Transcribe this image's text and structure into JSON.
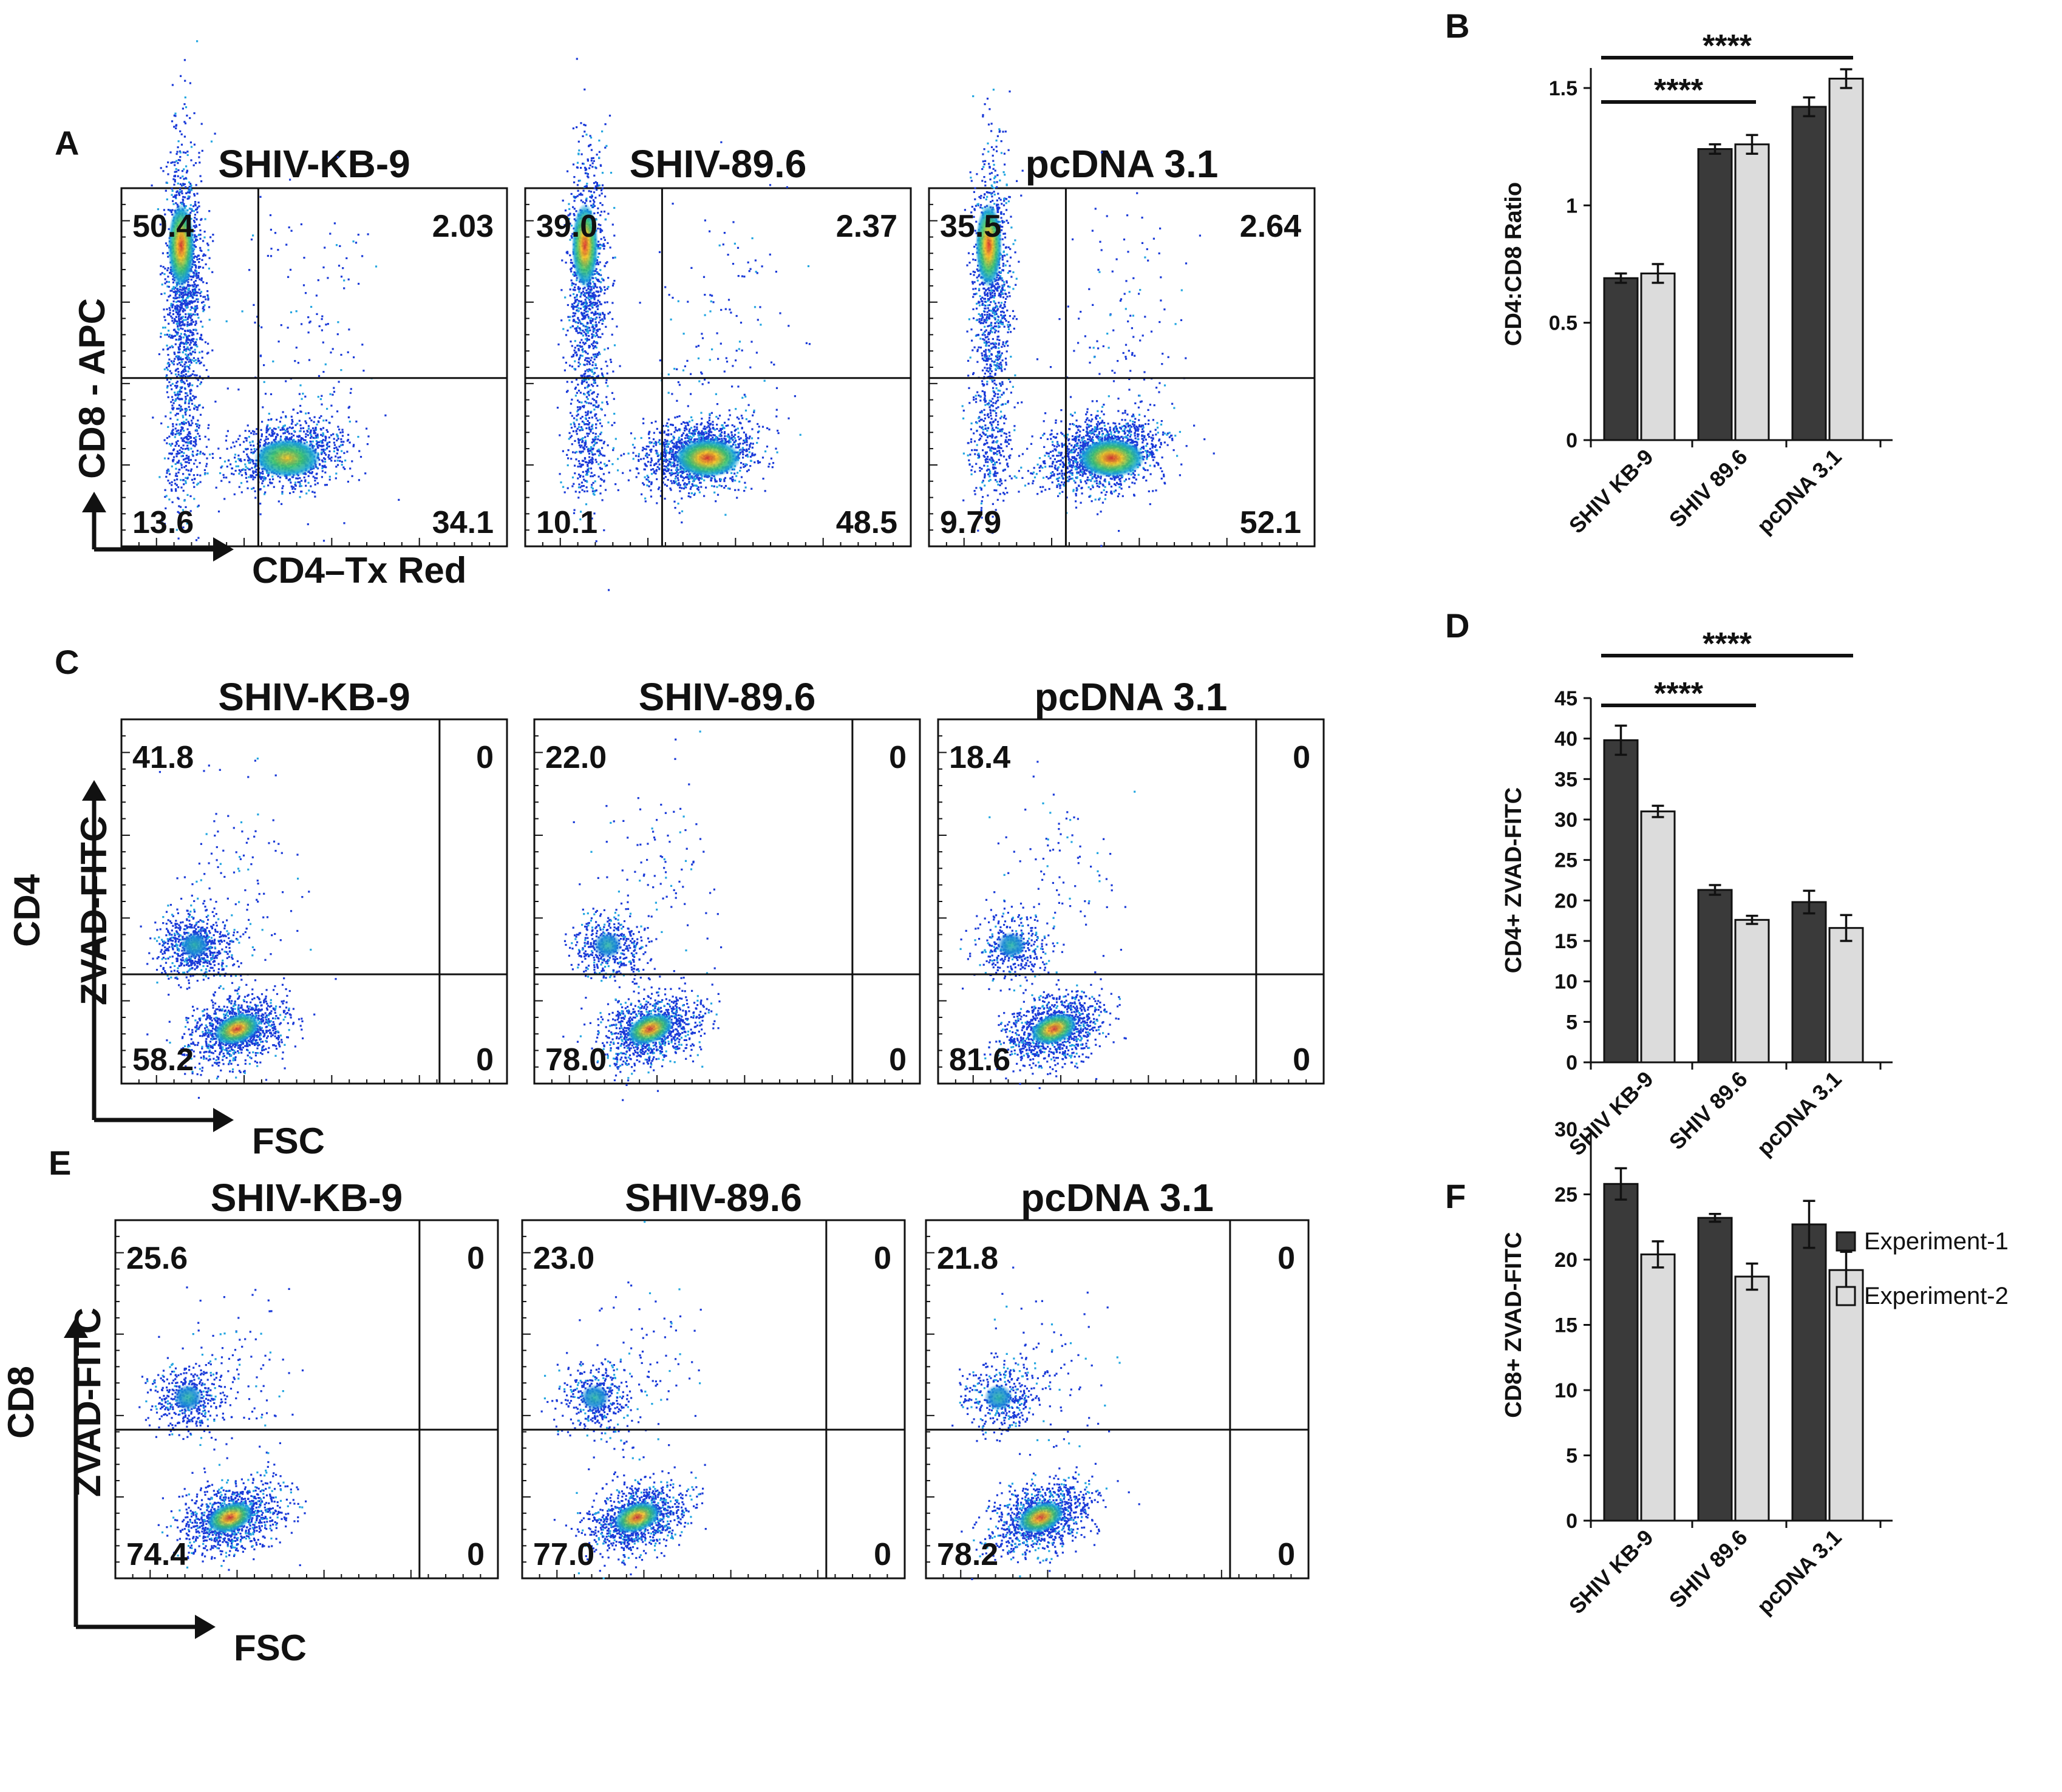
{
  "figure": {
    "flow_rows": [
      {
        "panel": "A",
        "x_axis": "CD4–Tx Red",
        "y_axis": [
          "CD8 - APC"
        ],
        "plots": [
          {
            "title": "SHIV-KB-9",
            "q_ul": "50.4",
            "q_ur": "2.03",
            "q_ll": "13.6",
            "q_lr": "34.1"
          },
          {
            "title": "SHIV-89.6",
            "q_ul": "39.0",
            "q_ur": "2.37",
            "q_ll": "10.1",
            "q_lr": "48.5"
          },
          {
            "title": "pcDNA 3.1",
            "q_ul": "35.5",
            "q_ur": "2.64",
            "q_ll": "9.79",
            "q_lr": "52.1"
          }
        ]
      },
      {
        "panel": "C",
        "x_axis": "FSC",
        "y_axis": [
          "CD4",
          "ZVAD-FITC"
        ],
        "plots": [
          {
            "title": "SHIV-KB-9",
            "q_ul": "41.8",
            "q_ur": "0",
            "q_ll": "58.2",
            "q_lr": "0"
          },
          {
            "title": "SHIV-89.6",
            "q_ul": "22.0",
            "q_ur": "0",
            "q_ll": "78.0",
            "q_lr": "0"
          },
          {
            "title": "pcDNA 3.1",
            "q_ul": "18.4",
            "q_ur": "0",
            "q_ll": "81.6",
            "q_lr": "0"
          }
        ]
      },
      {
        "panel": "E",
        "x_axis": "FSC",
        "y_axis": [
          "CD8",
          "ZVAD-FITC"
        ],
        "plots": [
          {
            "title": "SHIV-KB-9",
            "q_ul": "25.6",
            "q_ur": "0",
            "q_ll": "74.4",
            "q_lr": "0"
          },
          {
            "title": "SHIV-89.6",
            "q_ul": "23.0",
            "q_ur": "0",
            "q_ll": "77.0",
            "q_lr": "0"
          },
          {
            "title": "pcDNA 3.1",
            "q_ul": "21.8",
            "q_ur": "0",
            "q_ll": "78.2",
            "q_lr": "0"
          }
        ]
      }
    ],
    "legend": [
      {
        "label": "Experiment-1",
        "color": "#3a3a3a"
      },
      {
        "label": "Experiment-2",
        "color": "#dcdcdc"
      }
    ]
  },
  "chart_data": [
    {
      "panel": "B",
      "type": "bar",
      "categories": [
        "SHIV KB-9",
        "SHIV 89.6",
        "pcDNA 3.1"
      ],
      "series": [
        {
          "name": "Experiment-1",
          "values": [
            0.69,
            1.24,
            1.42
          ],
          "errors": [
            0.02,
            0.02,
            0.04
          ]
        },
        {
          "name": "Experiment-2",
          "values": [
            0.71,
            1.26,
            1.54
          ],
          "errors": [
            0.04,
            0.04,
            0.04
          ]
        }
      ],
      "ylabel": "CD4:CD8 Ratio",
      "ylim": [
        0,
        1.5
      ],
      "yticks": [
        0,
        0.5,
        1,
        1.5
      ],
      "ytick_labels": [
        "0",
        "0.5",
        "1",
        "1.5"
      ],
      "significance": [
        {
          "from": 0,
          "to": 1,
          "label": "****"
        },
        {
          "from": 0,
          "to": 2,
          "label": "****"
        }
      ]
    },
    {
      "panel": "D",
      "type": "bar",
      "categories": [
        "SHIV KB-9",
        "SHIV 89.6",
        "pcDNA 3.1"
      ],
      "series": [
        {
          "name": "Experiment-1",
          "values": [
            39.8,
            21.3,
            19.8
          ],
          "errors": [
            1.8,
            0.6,
            1.4
          ]
        },
        {
          "name": "Experiment-2",
          "values": [
            31.0,
            17.6,
            16.6
          ],
          "errors": [
            0.7,
            0.5,
            1.6
          ]
        }
      ],
      "ylabel": "CD4+ ZVAD-FITC",
      "ylim": [
        0,
        45
      ],
      "yticks": [
        0,
        5,
        10,
        15,
        20,
        25,
        30,
        35,
        40,
        45
      ],
      "ytick_labels": [
        "0",
        "5",
        "10",
        "15",
        "20",
        "25",
        "30",
        "35",
        "40",
        "45"
      ],
      "significance": [
        {
          "from": 0,
          "to": 1,
          "label": "****"
        },
        {
          "from": 0,
          "to": 2,
          "label": "****"
        }
      ]
    },
    {
      "panel": "F",
      "type": "bar",
      "categories": [
        "SHIV KB-9",
        "SHIV 89.6",
        "pcDNA 3.1"
      ],
      "series": [
        {
          "name": "Experiment-1",
          "values": [
            25.8,
            23.2,
            22.7
          ],
          "errors": [
            1.2,
            0.3,
            1.8
          ]
        },
        {
          "name": "Experiment-2",
          "values": [
            20.4,
            18.7,
            19.2
          ],
          "errors": [
            1.0,
            1.0,
            1.4
          ]
        }
      ],
      "ylabel": "CD8+ ZVAD-FITC",
      "ylim": [
        0,
        30
      ],
      "yticks": [
        0,
        5,
        10,
        15,
        20,
        25,
        30
      ],
      "ytick_labels": [
        "0",
        "5",
        "10",
        "15",
        "20",
        "25",
        "30"
      ],
      "significance": []
    }
  ]
}
